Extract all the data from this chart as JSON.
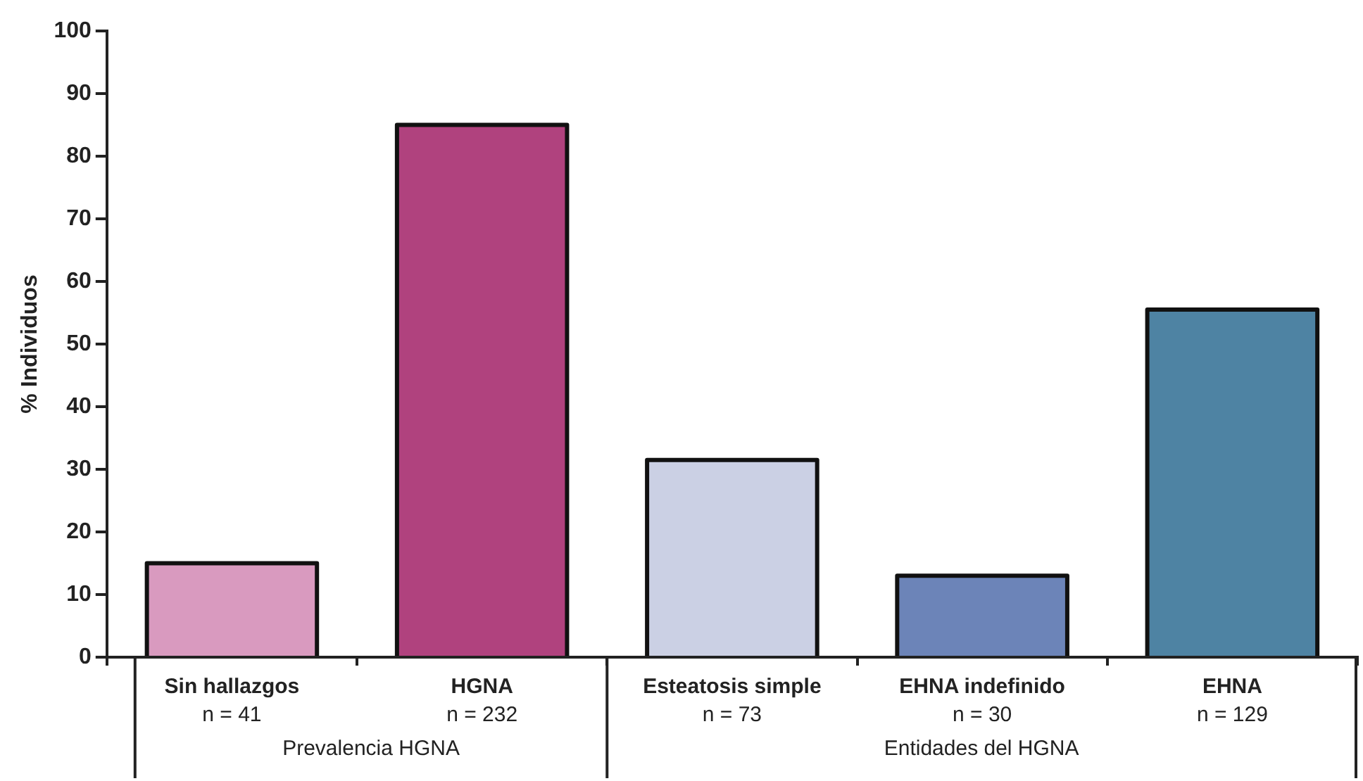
{
  "chart_data": {
    "type": "bar",
    "ylabel": "% Individuos",
    "categories": [
      "Sin hallazgos\nn = 41",
      "HGNA\nn = 232",
      "Esteatosis simple\nn = 73",
      "EHNA indefinido\nn = 30",
      "EHNA\nn = 129"
    ],
    "values": [
      15,
      85,
      31.5,
      13,
      55.5
    ],
    "colors": [
      "#d99abf",
      "#b0427e",
      "#cbd0e4",
      "#6c84b8",
      "#4e83a3"
    ],
    "ylim": [
      0,
      100
    ],
    "yticks": [
      0,
      10,
      20,
      30,
      40,
      50,
      60,
      70,
      80,
      90,
      100
    ],
    "annotations": [
      "Prevalencia HGNA",
      "Entidades del HGNA"
    ],
    "grid": false,
    "legend": false
  }
}
